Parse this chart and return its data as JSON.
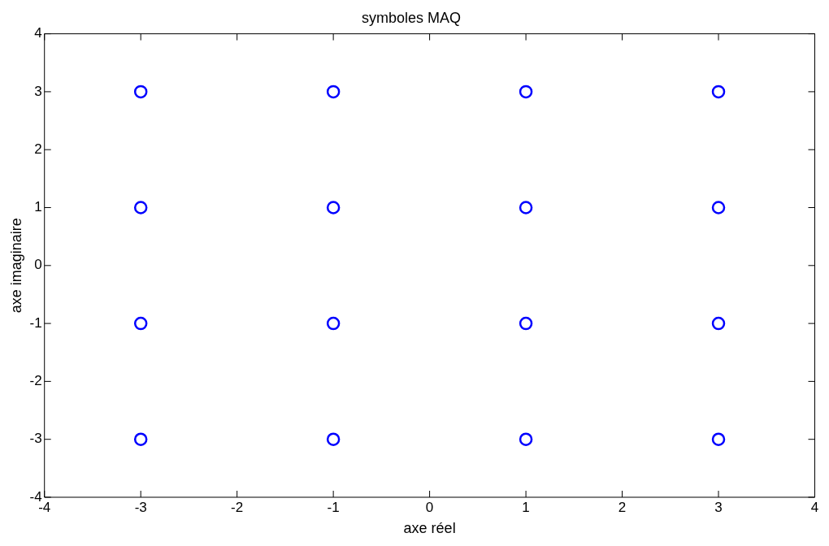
{
  "chart_data": {
    "type": "scatter",
    "title": "symboles MAQ",
    "xlabel": "axe réel",
    "ylabel": "axe imaginaire",
    "x": [
      -3,
      -3,
      -3,
      -3,
      -1,
      -1,
      -1,
      -1,
      1,
      1,
      1,
      1,
      3,
      3,
      3,
      3
    ],
    "series": [
      {
        "color": "#0000ff",
        "values": [
          3,
          1,
          -1,
          -3,
          3,
          1,
          -1,
          -3,
          3,
          1,
          -1,
          -3,
          3,
          1,
          -1,
          -3
        ]
      }
    ],
    "xlim": [
      -4,
      4
    ],
    "ylim": [
      -4,
      4
    ],
    "xticks": [
      -4,
      -3,
      -2,
      -1,
      0,
      1,
      2,
      3,
      4
    ],
    "yticks": [
      -4,
      -3,
      -2,
      -1,
      0,
      1,
      2,
      3,
      4
    ],
    "marker": "circle",
    "grid": false,
    "legend": false
  }
}
